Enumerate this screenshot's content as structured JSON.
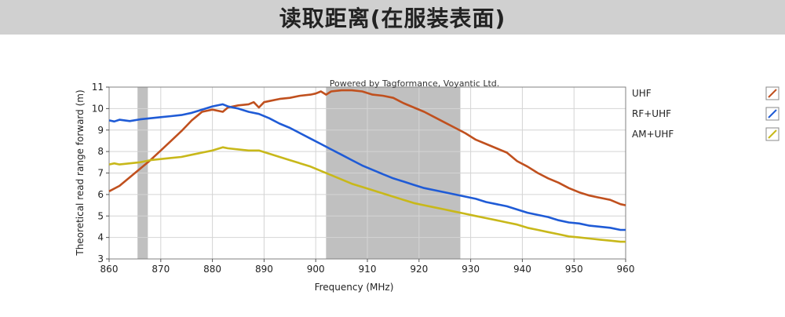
{
  "banner": {
    "title": "读取距离(在服装表面)"
  },
  "chart_data": {
    "type": "line",
    "watermark": "Powered by Tagformance, Voyantic Ltd.",
    "xlabel": "Frequency (MHz)",
    "ylabel": "Theoretical read range forward (m)",
    "xlim": [
      860,
      960
    ],
    "ylim": [
      3,
      11
    ],
    "xticks": [
      860,
      870,
      880,
      890,
      900,
      910,
      920,
      930,
      940,
      950,
      960
    ],
    "yticks": [
      3,
      4,
      5,
      6,
      7,
      8,
      9,
      10,
      11
    ],
    "grid": true,
    "legend_position": "right",
    "shaded_bands": [
      [
        865.5,
        867.5
      ],
      [
        902,
        928
      ]
    ],
    "series": [
      {
        "name": "UHF",
        "color": "#c0501e",
        "points": [
          [
            860,
            6.15
          ],
          [
            862,
            6.4
          ],
          [
            864,
            6.8
          ],
          [
            866,
            7.2
          ],
          [
            868,
            7.6
          ],
          [
            870,
            8.05
          ],
          [
            872,
            8.5
          ],
          [
            874,
            8.95
          ],
          [
            876,
            9.45
          ],
          [
            878,
            9.85
          ],
          [
            880,
            9.95
          ],
          [
            882,
            9.85
          ],
          [
            883,
            10.05
          ],
          [
            885,
            10.15
          ],
          [
            887,
            10.2
          ],
          [
            888,
            10.3
          ],
          [
            889,
            10.05
          ],
          [
            890,
            10.3
          ],
          [
            891,
            10.35
          ],
          [
            893,
            10.45
          ],
          [
            895,
            10.5
          ],
          [
            897,
            10.6
          ],
          [
            899,
            10.65
          ],
          [
            900,
            10.7
          ],
          [
            901,
            10.8
          ],
          [
            902,
            10.65
          ],
          [
            903,
            10.8
          ],
          [
            905,
            10.85
          ],
          [
            907,
            10.85
          ],
          [
            909,
            10.8
          ],
          [
            911,
            10.65
          ],
          [
            913,
            10.6
          ],
          [
            915,
            10.5
          ],
          [
            917,
            10.25
          ],
          [
            919,
            10.05
          ],
          [
            921,
            9.85
          ],
          [
            923,
            9.6
          ],
          [
            925,
            9.35
          ],
          [
            927,
            9.1
          ],
          [
            929,
            8.85
          ],
          [
            931,
            8.55
          ],
          [
            933,
            8.35
          ],
          [
            935,
            8.15
          ],
          [
            937,
            7.95
          ],
          [
            939,
            7.55
          ],
          [
            941,
            7.3
          ],
          [
            943,
            7.0
          ],
          [
            945,
            6.75
          ],
          [
            947,
            6.55
          ],
          [
            949,
            6.3
          ],
          [
            951,
            6.1
          ],
          [
            953,
            5.95
          ],
          [
            955,
            5.85
          ],
          [
            957,
            5.75
          ],
          [
            959,
            5.55
          ],
          [
            960,
            5.5
          ]
        ]
      },
      {
        "name": "RF+UHF",
        "color": "#1f5bd6",
        "points": [
          [
            860,
            9.45
          ],
          [
            861,
            9.4
          ],
          [
            862,
            9.48
          ],
          [
            864,
            9.42
          ],
          [
            866,
            9.5
          ],
          [
            868,
            9.55
          ],
          [
            870,
            9.6
          ],
          [
            872,
            9.65
          ],
          [
            874,
            9.7
          ],
          [
            876,
            9.8
          ],
          [
            878,
            9.95
          ],
          [
            880,
            10.1
          ],
          [
            882,
            10.2
          ],
          [
            883,
            10.1
          ],
          [
            885,
            10.0
          ],
          [
            887,
            9.85
          ],
          [
            889,
            9.75
          ],
          [
            891,
            9.55
          ],
          [
            893,
            9.3
          ],
          [
            895,
            9.1
          ],
          [
            897,
            8.85
          ],
          [
            899,
            8.6
          ],
          [
            901,
            8.35
          ],
          [
            903,
            8.1
          ],
          [
            905,
            7.85
          ],
          [
            907,
            7.6
          ],
          [
            909,
            7.35
          ],
          [
            911,
            7.15
          ],
          [
            913,
            6.95
          ],
          [
            915,
            6.75
          ],
          [
            917,
            6.6
          ],
          [
            919,
            6.45
          ],
          [
            921,
            6.3
          ],
          [
            923,
            6.2
          ],
          [
            925,
            6.1
          ],
          [
            927,
            6.0
          ],
          [
            929,
            5.9
          ],
          [
            931,
            5.8
          ],
          [
            933,
            5.65
          ],
          [
            935,
            5.55
          ],
          [
            937,
            5.45
          ],
          [
            939,
            5.3
          ],
          [
            941,
            5.15
          ],
          [
            943,
            5.05
          ],
          [
            945,
            4.95
          ],
          [
            947,
            4.8
          ],
          [
            949,
            4.7
          ],
          [
            951,
            4.65
          ],
          [
            953,
            4.55
          ],
          [
            955,
            4.5
          ],
          [
            957,
            4.45
          ],
          [
            959,
            4.35
          ],
          [
            960,
            4.35
          ]
        ]
      },
      {
        "name": "AM+UHF",
        "color": "#c8b81a",
        "points": [
          [
            860,
            7.4
          ],
          [
            861,
            7.45
          ],
          [
            862,
            7.4
          ],
          [
            864,
            7.45
          ],
          [
            866,
            7.5
          ],
          [
            868,
            7.6
          ],
          [
            870,
            7.65
          ],
          [
            872,
            7.7
          ],
          [
            874,
            7.75
          ],
          [
            876,
            7.85
          ],
          [
            878,
            7.95
          ],
          [
            880,
            8.05
          ],
          [
            882,
            8.2
          ],
          [
            883,
            8.15
          ],
          [
            885,
            8.1
          ],
          [
            887,
            8.05
          ],
          [
            889,
            8.05
          ],
          [
            891,
            7.9
          ],
          [
            893,
            7.75
          ],
          [
            895,
            7.6
          ],
          [
            897,
            7.45
          ],
          [
            899,
            7.3
          ],
          [
            901,
            7.1
          ],
          [
            903,
            6.9
          ],
          [
            905,
            6.7
          ],
          [
            907,
            6.5
          ],
          [
            909,
            6.35
          ],
          [
            911,
            6.2
          ],
          [
            913,
            6.05
          ],
          [
            915,
            5.9
          ],
          [
            917,
            5.75
          ],
          [
            919,
            5.6
          ],
          [
            921,
            5.5
          ],
          [
            923,
            5.4
          ],
          [
            925,
            5.3
          ],
          [
            927,
            5.2
          ],
          [
            929,
            5.1
          ],
          [
            931,
            5.0
          ],
          [
            933,
            4.9
          ],
          [
            935,
            4.8
          ],
          [
            937,
            4.7
          ],
          [
            939,
            4.6
          ],
          [
            941,
            4.45
          ],
          [
            943,
            4.35
          ],
          [
            945,
            4.25
          ],
          [
            947,
            4.15
          ],
          [
            949,
            4.05
          ],
          [
            951,
            4.0
          ],
          [
            953,
            3.95
          ],
          [
            955,
            3.9
          ],
          [
            957,
            3.85
          ],
          [
            959,
            3.8
          ],
          [
            960,
            3.8
          ]
        ]
      }
    ]
  }
}
